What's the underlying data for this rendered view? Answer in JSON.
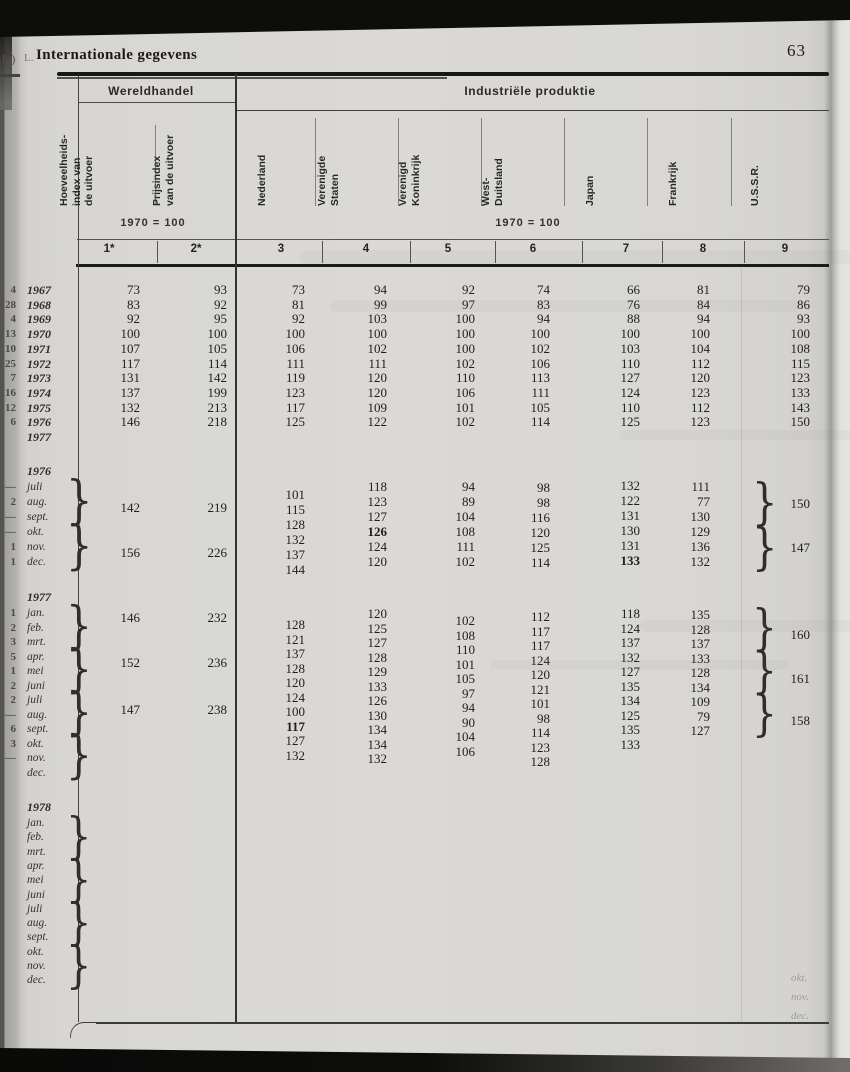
{
  "page": {
    "number": "63",
    "section_prefix": "L.",
    "title": "Internationale gegevens",
    "left_edge_ghost": "lg)",
    "ghost_months_bottom_right": [
      "okt.",
      "nov.",
      "dec."
    ]
  },
  "table": {
    "group_headers": {
      "left": "Wereldhandel",
      "right": "Industriële produktie"
    },
    "base_notes": {
      "left": "1970 = 100",
      "right": "1970 = 100"
    },
    "columns": [
      {
        "num": "1*",
        "header": "Hoeveelheids-\nindex van\nde uitvoer"
      },
      {
        "num": "2*",
        "header": "Prijsindex\nvan de uitvoer"
      },
      {
        "num": "3",
        "header": "Nederland"
      },
      {
        "num": "4",
        "header": "Verenigde\nStaten"
      },
      {
        "num": "5",
        "header": "Verenigd\nKoninkrijk"
      },
      {
        "num": "6",
        "header": "West-\nDuitsland"
      },
      {
        "num": "7",
        "header": "Japan"
      },
      {
        "num": "8",
        "header": "Frankrijk"
      },
      {
        "num": "9",
        "header": "U.S.S.R."
      }
    ],
    "sections": [
      {
        "kind": "years",
        "year": "",
        "rows": [
          {
            "label": "1967",
            "margin": "4",
            "v": [
              "73",
              "93",
              "73",
              "94",
              "92",
              "74",
              "66",
              "81",
              "79"
            ]
          },
          {
            "label": "1968",
            "margin": "28",
            "v": [
              "83",
              "92",
              "81",
              "99",
              "97",
              "83",
              "76",
              "84",
              "86"
            ]
          },
          {
            "label": "1969",
            "margin": "4",
            "v": [
              "92",
              "95",
              "92",
              "103",
              "100",
              "94",
              "88",
              "94",
              "93"
            ]
          },
          {
            "label": "1970",
            "margin": "13",
            "v": [
              "100",
              "100",
              "100",
              "100",
              "100",
              "100",
              "100",
              "100",
              "100"
            ]
          },
          {
            "label": "1971",
            "margin": "10",
            "v": [
              "107",
              "105",
              "106",
              "102",
              "100",
              "102",
              "103",
              "104",
              "108"
            ]
          },
          {
            "label": "1972",
            "margin": "25",
            "v": [
              "117",
              "114",
              "111",
              "111",
              "102",
              "106",
              "110",
              "112",
              "115"
            ]
          },
          {
            "label": "1973",
            "margin": "7",
            "v": [
              "131",
              "142",
              "119",
              "120",
              "110",
              "113",
              "127",
              "120",
              "123"
            ]
          },
          {
            "label": "1974",
            "margin": "16",
            "v": [
              "137",
              "199",
              "123",
              "120",
              "106",
              "111",
              "124",
              "123",
              "133"
            ]
          },
          {
            "label": "1975",
            "margin": "12",
            "v": [
              "132",
              "213",
              "117",
              "109",
              "101",
              "105",
              "110",
              "112",
              "143"
            ]
          },
          {
            "label": "1976",
            "margin": "6",
            "v": [
              "146",
              "218",
              "125",
              "122",
              "102",
              "114",
              "125",
              "123",
              "150"
            ]
          },
          {
            "label": "1977",
            "margin": "",
            "v": [
              "",
              "",
              "",
              "",
              "",
              "",
              "",
              "",
              ""
            ]
          }
        ],
        "quarters": []
      },
      {
        "kind": "months",
        "year": "1976",
        "rows": [
          {
            "label": "juli",
            "margin": "—",
            "v": [
              "",
              "",
              "101",
              "118",
              "94",
              "98",
              "132",
              "111",
              ""
            ]
          },
          {
            "label": "aug.",
            "margin": "2",
            "v": [
              "",
              "",
              "115",
              "123",
              "89",
              "98",
              "122",
              "77",
              ""
            ]
          },
          {
            "label": "sept.",
            "margin": "—",
            "v": [
              "",
              "",
              "128",
              "127",
              "104",
              "116",
              "131",
              "130",
              ""
            ]
          },
          {
            "label": "okt.",
            "margin": "—",
            "v": [
              "",
              "",
              "132",
              "*126",
              "108",
              "120",
              "130",
              "129",
              ""
            ]
          },
          {
            "label": "nov.",
            "margin": "1",
            "v": [
              "",
              "",
              "137",
              "124",
              "111",
              "125",
              "131",
              "136",
              ""
            ]
          },
          {
            "label": "dec.",
            "margin": "1",
            "v": [
              "",
              "",
              "144",
              "120",
              "102",
              "114",
              "*133",
              "132",
              ""
            ]
          }
        ],
        "quarters": [
          {
            "c1": "142",
            "c2": "219",
            "c9": "150"
          },
          {
            "c1": "156",
            "c2": "226",
            "c9": "147"
          }
        ]
      },
      {
        "kind": "months",
        "year": "1977",
        "rows": [
          {
            "label": "jan.",
            "margin": "1",
            "v": [
              "",
              "",
              "128",
              "120",
              "102",
              "112",
              "118",
              "135",
              ""
            ]
          },
          {
            "label": "feb.",
            "margin": "2",
            "v": [
              "",
              "",
              "121",
              "125",
              "108",
              "117",
              "124",
              "128",
              ""
            ]
          },
          {
            "label": "mrt.",
            "margin": "3",
            "v": [
              "",
              "",
              "137",
              "127",
              "110",
              "117",
              "137",
              "137",
              ""
            ]
          },
          {
            "label": "apr.",
            "margin": "5",
            "v": [
              "",
              "",
              "128",
              "128",
              "101",
              "124",
              "132",
              "133",
              ""
            ]
          },
          {
            "label": "mei",
            "margin": "1",
            "v": [
              "",
              "",
              "120",
              "129",
              "105",
              "120",
              "127",
              "128",
              ""
            ]
          },
          {
            "label": "juni",
            "margin": "2",
            "v": [
              "",
              "",
              "124",
              "133",
              "97",
              "121",
              "135",
              "134",
              ""
            ]
          },
          {
            "label": "juli",
            "margin": "2",
            "v": [
              "",
              "",
              "100",
              "126",
              "94",
              "101",
              "134",
              "109",
              ""
            ]
          },
          {
            "label": "aug.",
            "margin": "—",
            "v": [
              "",
              "",
              "*117",
              "130",
              "90",
              "98",
              "125",
              "79",
              ""
            ]
          },
          {
            "label": "sept.",
            "margin": "6",
            "v": [
              "",
              "",
              "127",
              "134",
              "104",
              "114",
              "135",
              "127",
              ""
            ]
          },
          {
            "label": "okt.",
            "margin": "3",
            "v": [
              "",
              "",
              "132",
              "134",
              "106",
              "123",
              "133",
              "",
              ""
            ]
          },
          {
            "label": "nov.",
            "margin": "—",
            "v": [
              "",
              "",
              "",
              "132",
              "",
              "128",
              "",
              "",
              ""
            ]
          },
          {
            "label": "dec.",
            "margin": "",
            "v": [
              "",
              "",
              "",
              "",
              "",
              "",
              "",
              "",
              ""
            ]
          }
        ],
        "quarters": [
          {
            "c1": "146",
            "c2": "232",
            "c9": "160"
          },
          {
            "c1": "152",
            "c2": "236",
            "c9": "161"
          },
          {
            "c1": "147",
            "c2": "238",
            "c9": "158"
          },
          {}
        ]
      },
      {
        "kind": "months",
        "year": "1978",
        "rows": [
          {
            "label": "jan.",
            "margin": "",
            "v": [
              "",
              "",
              "",
              "",
              "",
              "",
              "",
              "",
              ""
            ]
          },
          {
            "label": "feb.",
            "margin": "",
            "v": [
              "",
              "",
              "",
              "",
              "",
              "",
              "",
              "",
              ""
            ]
          },
          {
            "label": "mrt.",
            "margin": "",
            "v": [
              "",
              "",
              "",
              "",
              "",
              "",
              "",
              "",
              ""
            ]
          },
          {
            "label": "apr.",
            "margin": "",
            "v": [
              "",
              "",
              "",
              "",
              "",
              "",
              "",
              "",
              ""
            ]
          },
          {
            "label": "mei",
            "margin": "",
            "v": [
              "",
              "",
              "",
              "",
              "",
              "",
              "",
              "",
              ""
            ]
          },
          {
            "label": "juni",
            "margin": "",
            "v": [
              "",
              "",
              "",
              "",
              "",
              "",
              "",
              "",
              ""
            ]
          },
          {
            "label": "juli",
            "margin": "",
            "v": [
              "",
              "",
              "",
              "",
              "",
              "",
              "",
              "",
              ""
            ]
          },
          {
            "label": "aug.",
            "margin": "",
            "v": [
              "",
              "",
              "",
              "",
              "",
              "",
              "",
              "",
              ""
            ]
          },
          {
            "label": "sept.",
            "margin": "",
            "v": [
              "",
              "",
              "",
              "",
              "",
              "",
              "",
              "",
              ""
            ]
          },
          {
            "label": "okt.",
            "margin": "",
            "v": [
              "",
              "",
              "",
              "",
              "",
              "",
              "",
              "",
              ""
            ]
          },
          {
            "label": "nov.",
            "margin": "",
            "v": [
              "",
              "",
              "",
              "",
              "",
              "",
              "",
              "",
              ""
            ]
          },
          {
            "label": "dec.",
            "margin": "",
            "v": [
              "",
              "",
              "",
              "",
              "",
              "",
              "",
              "",
              ""
            ]
          }
        ],
        "quarters": [
          {},
          {},
          {},
          {}
        ]
      }
    ]
  }
}
